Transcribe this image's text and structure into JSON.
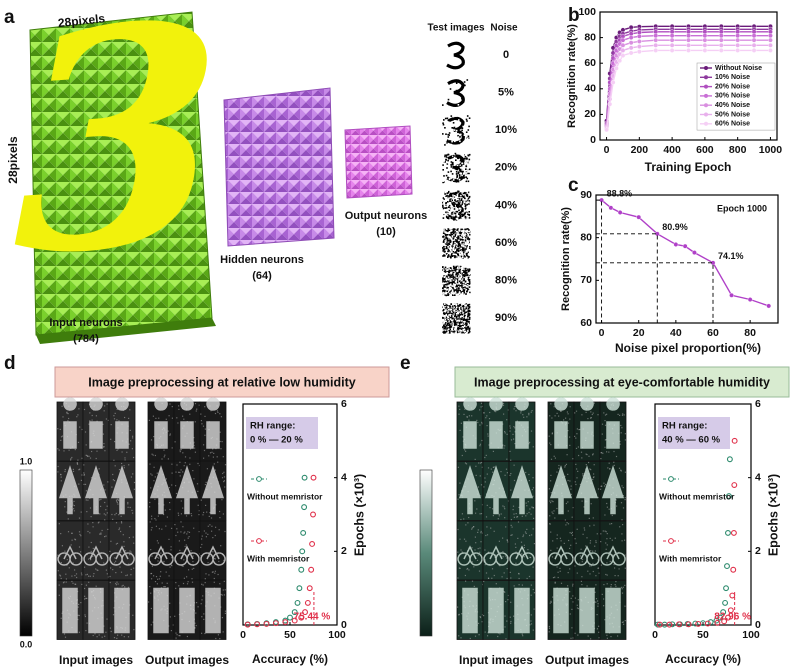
{
  "figure": {
    "panel_labels": [
      "a",
      "b",
      "c",
      "d",
      "e"
    ],
    "panel_a": {
      "digit": "3",
      "top_label": "28pixels",
      "side_label": "28pixels",
      "input_label": "Input neurons",
      "input_count": "(784)",
      "hidden_label": "Hidden neurons",
      "hidden_count": "(64)",
      "output_label": "Output neurons",
      "output_count": "(10)",
      "test_header": "Test images",
      "noise_header": "Noise",
      "noise_levels": [
        "0",
        "5%",
        "10%",
        "20%",
        "40%",
        "60%",
        "80%",
        "90%"
      ]
    },
    "panel_d": {
      "banner": "Image preprocessing at relative low humidity",
      "colorbar_labels": [
        "1.0",
        "0.0"
      ],
      "input_label": "Input images",
      "output_label": "Output images"
    },
    "panel_e": {
      "banner": "Image preprocessing at eye-comfortable humidity",
      "input_label": "Input images",
      "output_label": "Output images"
    }
  },
  "chart_data": [
    {
      "type": "line",
      "xlabel": "Training Epoch",
      "ylabel": "Recognition rate(%)",
      "xlim": [
        -40,
        1040
      ],
      "ylim": [
        0,
        100
      ],
      "xticks": [
        0,
        200,
        400,
        600,
        800,
        1000
      ],
      "yticks": [
        0,
        20,
        40,
        60,
        80,
        100
      ],
      "x": [
        0,
        20,
        40,
        60,
        80,
        100,
        150,
        200,
        300,
        400,
        500,
        600,
        700,
        800,
        900,
        1000
      ],
      "series": [
        {
          "name": "Without Noise",
          "color": "#6a1b7a",
          "values": [
            15,
            52,
            72,
            80,
            84,
            86,
            88,
            88.5,
            88.8,
            88.8,
            88.8,
            88.8,
            88.8,
            88.8,
            88.8,
            88.8
          ]
        },
        {
          "name": "10% Noise",
          "color": "#8e3a9e",
          "values": [
            13,
            48,
            68,
            77,
            81,
            83,
            85,
            86,
            86.5,
            86.5,
            86.5,
            86.5,
            86.5,
            86.5,
            86.5,
            86.5
          ]
        },
        {
          "name": "20% Noise",
          "color": "#b04fc0",
          "values": [
            12,
            45,
            64,
            74,
            78,
            81,
            83,
            84,
            84.5,
            84.5,
            84.5,
            84.5,
            84.5,
            84.5,
            84.5,
            84.5
          ]
        },
        {
          "name": "30% Noise",
          "color": "#c96fd6",
          "values": [
            11,
            40,
            60,
            70,
            75,
            78,
            80,
            81,
            81.5,
            81.5,
            81.5,
            81.5,
            81.5,
            81.5,
            81.5,
            81.5
          ]
        },
        {
          "name": "40% Noise",
          "color": "#d98fe0",
          "values": [
            10,
            36,
            55,
            66,
            71,
            74,
            76,
            77,
            78,
            78,
            78,
            78,
            78,
            78,
            78,
            78
          ]
        },
        {
          "name": "50% Noise",
          "color": "#e8b0ec",
          "values": [
            9,
            32,
            50,
            61,
            67,
            70,
            72,
            73,
            74,
            74,
            74,
            74,
            74,
            74,
            74,
            74
          ]
        },
        {
          "name": "60% Noise",
          "color": "#f5cff5",
          "values": [
            8,
            28,
            45,
            56,
            62,
            66,
            68,
            69,
            70,
            70,
            70,
            70,
            70,
            70,
            70,
            70
          ]
        }
      ]
    },
    {
      "type": "line",
      "xlabel": "Noise pixel proportion(%)",
      "ylabel": "Recognition rate(%)",
      "annotation": "Epoch 1000",
      "xlim": [
        -3,
        95
      ],
      "ylim": [
        60,
        90
      ],
      "xticks": [
        0,
        20,
        40,
        60,
        80
      ],
      "yticks": [
        60,
        70,
        80,
        90
      ],
      "color": "#b040c8",
      "x": [
        0,
        5,
        10,
        20,
        30,
        40,
        45,
        50,
        60,
        70,
        80,
        90
      ],
      "values": [
        88.8,
        87,
        85.9,
        84.8,
        80.9,
        78.4,
        78,
        76.5,
        74.1,
        66.5,
        65.5,
        64
      ],
      "value_labels": [
        "88.8%",
        null,
        null,
        null,
        "80.9%",
        null,
        null,
        null,
        "74.1%",
        null,
        null,
        null
      ]
    },
    {
      "type": "scatter",
      "xlabel": "Accuracy (%)",
      "ylabel": "Epochs (×10³)",
      "y_axis_side": "right",
      "annotations": [
        "RH range:",
        "0 % — 20 %"
      ],
      "xlim": [
        0,
        100
      ],
      "ylim": [
        0,
        6
      ],
      "xticks": [
        0,
        50,
        100
      ],
      "yticks": [
        0,
        2,
        4,
        6
      ],
      "marker": {
        "value": 75.44,
        "label": "75.44 %",
        "color": "#e0304a"
      },
      "series": [
        {
          "name": "Without memristor",
          "color": "#2e8b6e",
          "x": [
            5,
            15,
            25,
            35,
            45,
            50,
            55,
            58,
            60,
            62,
            63,
            64,
            65,
            65.5,
            66
          ],
          "values": [
            0.02,
            0.03,
            0.05,
            0.08,
            0.12,
            0.2,
            0.35,
            0.6,
            1,
            1.5,
            2,
            2.5,
            3.2,
            4,
            5
          ]
        },
        {
          "name": "With memristor",
          "color": "#e0304a",
          "x": [
            5,
            15,
            25,
            35,
            45,
            55,
            62,
            66,
            69,
            71,
            72.5,
            73.5,
            74.5,
            75,
            75.44
          ],
          "values": [
            0.01,
            0.02,
            0.03,
            0.05,
            0.08,
            0.12,
            0.2,
            0.35,
            0.6,
            1,
            1.5,
            2.2,
            3,
            4,
            5
          ]
        }
      ]
    },
    {
      "type": "scatter",
      "xlabel": "Accuracy (%)",
      "ylabel": "Epochs (×10³)",
      "y_axis_side": "right",
      "annotations": [
        "RH range:",
        "40 % — 60 %"
      ],
      "xlim": [
        0,
        100
      ],
      "ylim": [
        0,
        6
      ],
      "xticks": [
        0,
        50,
        100
      ],
      "yticks": [
        0,
        2,
        4,
        6
      ],
      "marker": {
        "value": 82.96,
        "label": "82.96 %",
        "color": "#e0304a"
      },
      "series": [
        {
          "name": "Without memristor",
          "color": "#2e8b6e",
          "x": [
            3,
            10,
            18,
            26,
            34,
            42,
            50,
            58,
            64,
            68,
            71,
            73,
            74,
            75,
            76,
            77,
            78
          ],
          "values": [
            0.01,
            0.01,
            0.02,
            0.02,
            0.03,
            0.04,
            0.05,
            0.08,
            0.12,
            0.2,
            0.35,
            0.6,
            1,
            1.6,
            2.5,
            3.5,
            4.5
          ]
        },
        {
          "name": "With memristor",
          "color": "#e0304a",
          "x": [
            5,
            15,
            25,
            35,
            45,
            55,
            65,
            72,
            76,
            79,
            80.5,
            81.5,
            82.2,
            82.6,
            82.96
          ],
          "values": [
            0.01,
            0.01,
            0.02,
            0.02,
            0.03,
            0.04,
            0.06,
            0.1,
            0.2,
            0.4,
            0.8,
            1.5,
            2.5,
            3.8,
            5
          ]
        }
      ]
    }
  ]
}
